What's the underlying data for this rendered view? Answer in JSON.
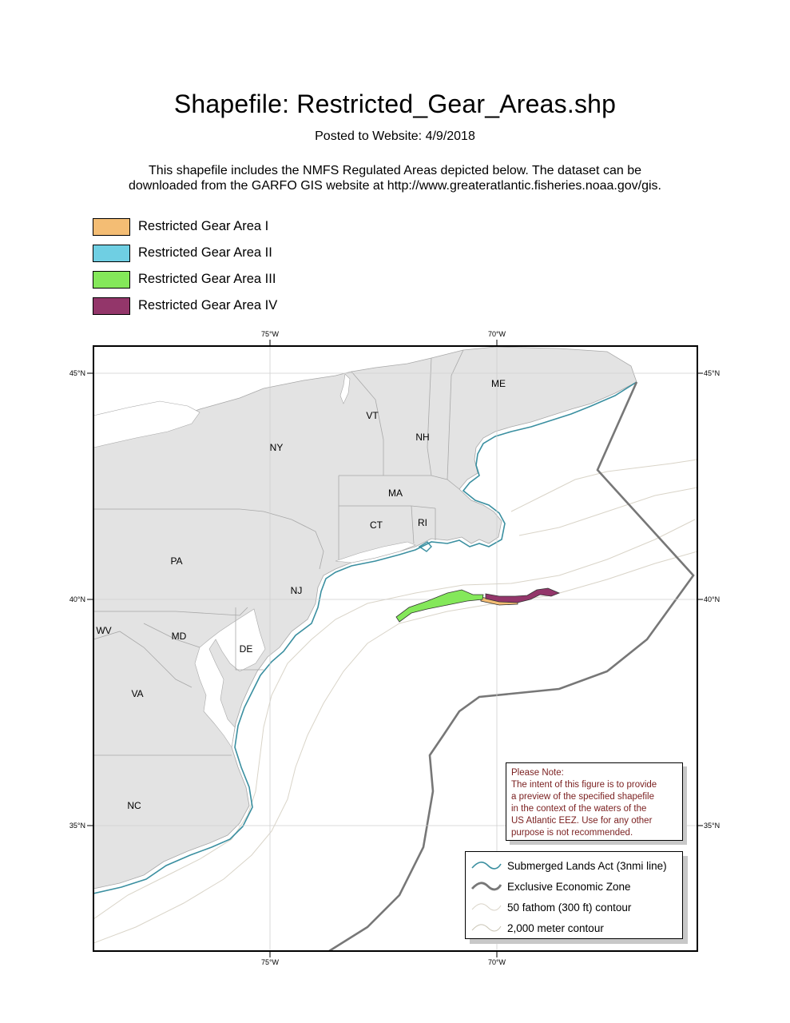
{
  "header": {
    "title": "Shapefile: Restricted_Gear_Areas.shp",
    "posted": "Posted to Website: 4/9/2018",
    "desc_line1": "This shapefile includes the NMFS Regulated Areas depicted below. The dataset can be",
    "desc_line2": "downloaded from the GARFO GIS website at http://www.greateratlantic.fisheries.noaa.gov/gis."
  },
  "area_legend": [
    {
      "label": "Restricted Gear Area I",
      "color": "#f4bd74"
    },
    {
      "label": "Restricted Gear Area II",
      "color": "#6fcfe3"
    },
    {
      "label": "Restricted Gear Area III",
      "color": "#84e85a"
    },
    {
      "label": "Restricted Gear Area IV",
      "color": "#93366a"
    }
  ],
  "map": {
    "lon_labels": {
      "w75": "75°W",
      "w70": "70°W"
    },
    "lat_labels": {
      "n45": "45°N",
      "n40": "40°N",
      "n35": "35°N"
    },
    "states": {
      "me": "ME",
      "vt": "VT",
      "nh": "NH",
      "ny": "NY",
      "ma": "MA",
      "ct": "CT",
      "ri": "RI",
      "pa": "PA",
      "nj": "NJ",
      "wv": "WV",
      "md": "MD",
      "de": "DE",
      "va": "VA",
      "nc": "NC"
    },
    "colors": {
      "land": "#e3e3e3",
      "land_border": "#a8a8a8",
      "sla_line": "#3a8fa0",
      "eez_line": "#777777",
      "contour": "#d9d4c8",
      "frame": "#000000"
    }
  },
  "note": {
    "lines": [
      "Please Note:",
      "The intent of this figure is to provide",
      "a preview of the specified shapefile",
      "in the context of the waters of the",
      "US Atlantic EEZ.  Use for any other",
      "purpose is not recommended."
    ]
  },
  "map_legend": [
    {
      "label": "Submerged Lands Act (3nmi line)",
      "icon": "sla-line-icon"
    },
    {
      "label": "Exclusive Economic Zone",
      "icon": "eez-line-icon"
    },
    {
      "label": "50 fathom (300 ft) contour",
      "icon": "contour-50fathom-icon"
    },
    {
      "label": "2,000 meter contour",
      "icon": "contour-2000m-icon"
    }
  ]
}
